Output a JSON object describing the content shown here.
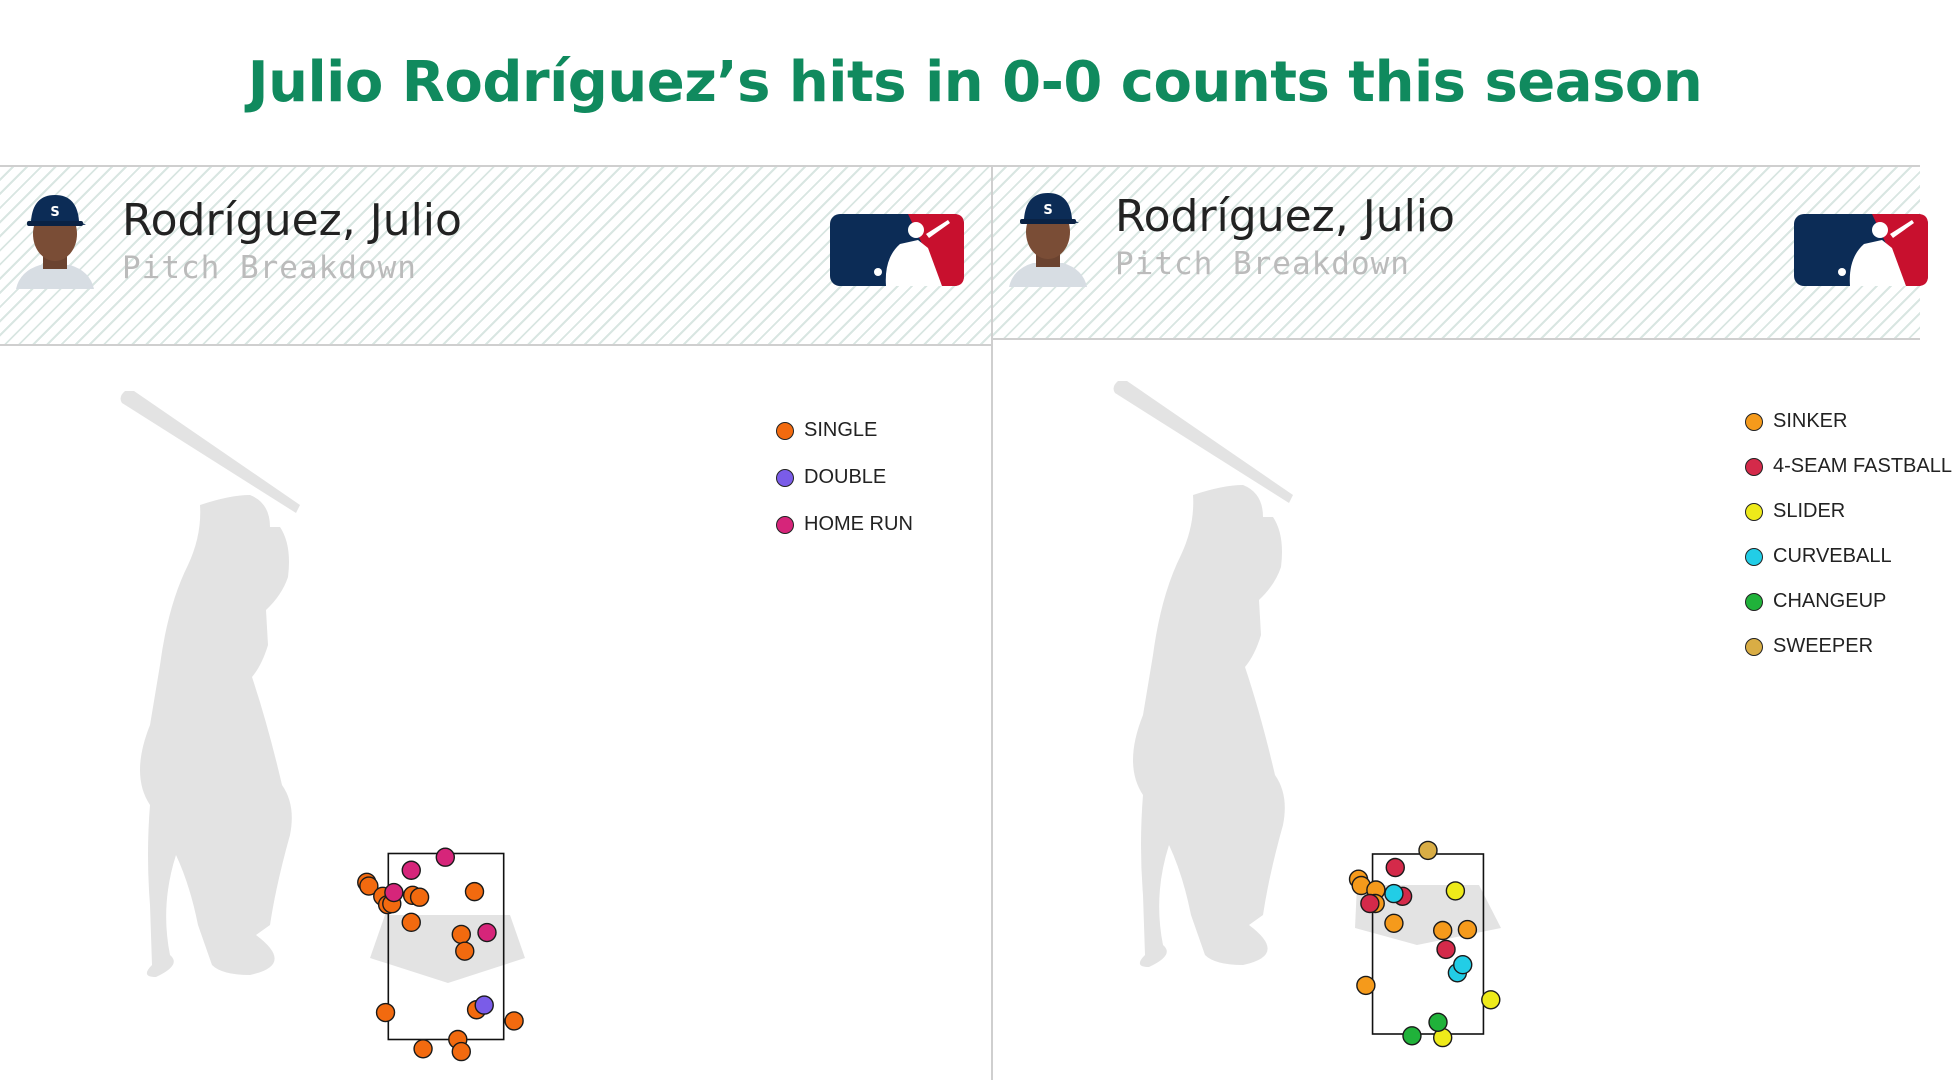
{
  "title": "Julio Rodríguez’s hits in 0-0 counts this season",
  "panels": [
    {
      "player_name": "Rodríguez, Julio",
      "subtitle": "Pitch Breakdown",
      "legend": [
        {
          "label": "SINGLE",
          "color": "#f26a0f"
        },
        {
          "label": "DOUBLE",
          "color": "#7a5ce8"
        },
        {
          "label": "HOME RUN",
          "color": "#d6257a"
        }
      ]
    },
    {
      "player_name": "Rodríguez, Julio",
      "subtitle": "Pitch Breakdown",
      "legend": [
        {
          "label": "SINKER",
          "color": "#f59a1b"
        },
        {
          "label": "4-SEAM FASTBALL",
          "color": "#d42a4a"
        },
        {
          "label": "SLIDER",
          "color": "#eeea1a"
        },
        {
          "label": "CURVEBALL",
          "color": "#22cde6"
        },
        {
          "label": "CHANGEUP",
          "color": "#20b23a"
        },
        {
          "label": "SWEEPER",
          "color": "#d9ad45"
        }
      ]
    }
  ],
  "chart_data": [
    {
      "type": "scatter",
      "title": "Rodríguez, Julio",
      "subtitle": "Pitch Breakdown",
      "xlim": [
        -2,
        2
      ],
      "ylim": [
        0,
        5
      ],
      "strike_zone": {
        "x": [
          -0.83,
          0.83
        ],
        "z": [
          1.5,
          3.5
        ]
      },
      "series": [
        {
          "name": "SINGLE",
          "color": "#f26a0f",
          "points": [
            [
              -1.14,
              3.19
            ],
            [
              -1.11,
              3.15
            ],
            [
              -0.91,
              3.04
            ],
            [
              -0.84,
              2.95
            ],
            [
              -0.78,
              2.96
            ],
            [
              -0.48,
              3.05
            ],
            [
              -0.38,
              3.03
            ],
            [
              -0.5,
              2.76
            ],
            [
              0.41,
              3.09
            ],
            [
              0.22,
              2.63
            ],
            [
              0.27,
              2.45
            ],
            [
              -0.87,
              1.79
            ],
            [
              0.44,
              1.82
            ],
            [
              0.98,
              1.7
            ],
            [
              -0.33,
              1.4
            ],
            [
              0.17,
              1.5
            ],
            [
              0.22,
              1.37
            ]
          ]
        },
        {
          "name": "DOUBLE",
          "color": "#7a5ce8",
          "points": [
            [
              0.55,
              1.87
            ]
          ]
        },
        {
          "name": "HOME RUN",
          "color": "#d6257a",
          "points": [
            [
              -0.5,
              3.32
            ],
            [
              -0.01,
              3.46
            ],
            [
              -0.75,
              3.08
            ],
            [
              0.59,
              2.65
            ]
          ]
        }
      ]
    },
    {
      "type": "scatter",
      "title": "Rodríguez, Julio",
      "subtitle": "Pitch Breakdown",
      "xlim": [
        -2,
        2
      ],
      "ylim": [
        0,
        5
      ],
      "strike_zone": {
        "x": [
          -0.83,
          0.83
        ],
        "z": [
          1.5,
          3.5
        ]
      },
      "series": [
        {
          "name": "SINKER",
          "color": "#f59a1b",
          "points": [
            [
              -1.04,
              3.22
            ],
            [
              -1.0,
              3.15
            ],
            [
              -0.78,
              3.1
            ],
            [
              -0.79,
              2.95
            ],
            [
              -0.51,
              2.73
            ],
            [
              0.22,
              2.65
            ],
            [
              0.59,
              2.66
            ],
            [
              -0.93,
              2.04
            ]
          ]
        },
        {
          "name": "4-SEAM FASTBALL",
          "color": "#d42a4a",
          "points": [
            [
              -0.49,
              3.35
            ],
            [
              -0.38,
              3.03
            ],
            [
              -0.87,
              2.95
            ],
            [
              0.27,
              2.44
            ]
          ]
        },
        {
          "name": "SLIDER",
          "color": "#eeea1a",
          "points": [
            [
              0.41,
              3.09
            ],
            [
              0.94,
              1.88
            ],
            [
              0.22,
              1.46
            ]
          ]
        },
        {
          "name": "CURVEBALL",
          "color": "#22cde6",
          "points": [
            [
              -0.51,
              3.06
            ],
            [
              0.44,
              2.18
            ],
            [
              0.52,
              2.27
            ]
          ]
        },
        {
          "name": "CHANGEUP",
          "color": "#20b23a",
          "points": [
            [
              -0.24,
              1.48
            ],
            [
              0.15,
              1.63
            ]
          ]
        },
        {
          "name": "SWEEPER",
          "color": "#d9ad45",
          "points": [
            [
              0.0,
              3.54
            ]
          ]
        }
      ]
    }
  ]
}
